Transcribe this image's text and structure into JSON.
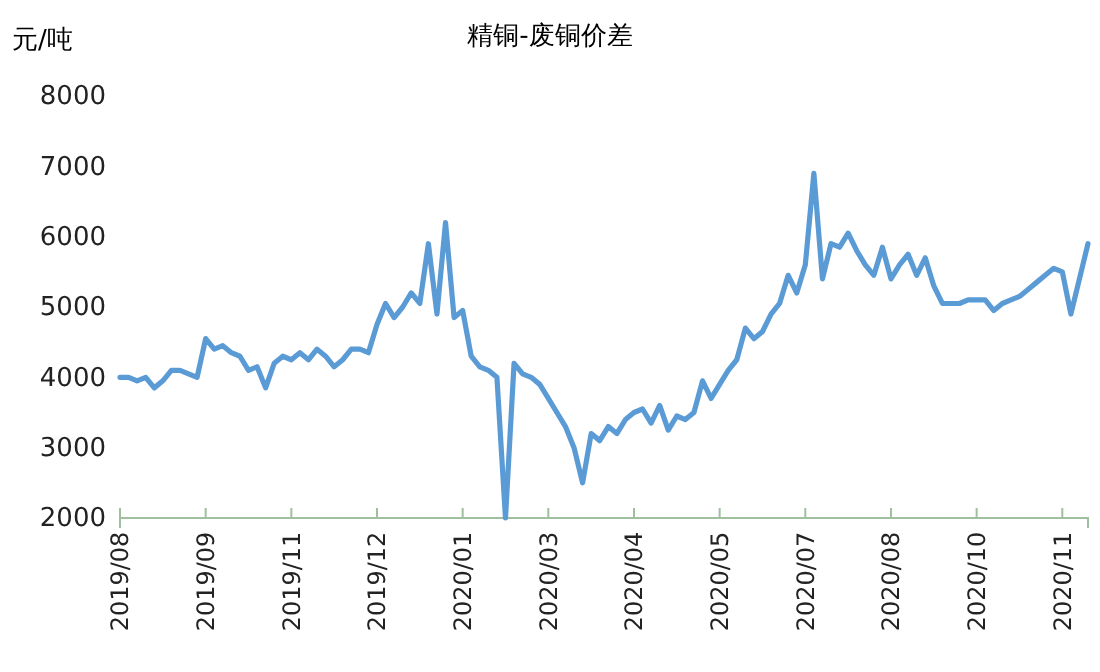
{
  "chart_data": {
    "type": "line",
    "title": "精铜-废铜价差",
    "ylabel": "元/吨",
    "categories": [
      "2019/08",
      null,
      null,
      null,
      null,
      null,
      null,
      null,
      null,
      null,
      "2019/09",
      null,
      null,
      null,
      null,
      null,
      null,
      null,
      null,
      null,
      "2019/11",
      null,
      null,
      null,
      null,
      null,
      null,
      null,
      null,
      null,
      "2019/12",
      null,
      null,
      null,
      null,
      null,
      null,
      null,
      null,
      null,
      "2020/01",
      null,
      null,
      null,
      null,
      null,
      null,
      null,
      null,
      null,
      "2020/03",
      null,
      null,
      null,
      null,
      null,
      null,
      null,
      null,
      null,
      "2020/04",
      null,
      null,
      null,
      null,
      null,
      null,
      null,
      null,
      null,
      "2020/05",
      null,
      null,
      null,
      null,
      null,
      null,
      null,
      null,
      null,
      "2020/07",
      null,
      null,
      null,
      null,
      null,
      null,
      null,
      null,
      null,
      "2020/08",
      null,
      null,
      null,
      null,
      null,
      null,
      null,
      null,
      null,
      "2020/10",
      null,
      null,
      null,
      null,
      null,
      null,
      null,
      null,
      null,
      "2020/11",
      null,
      null,
      null
    ],
    "series": [
      {
        "color": "#5b9bd5",
        "values": [
          4000,
          4000,
          3950,
          4000,
          3850,
          3950,
          4100,
          4100,
          4050,
          4000,
          4550,
          4400,
          4450,
          4350,
          4300,
          4100,
          4150,
          3850,
          4200,
          4300,
          4250,
          4350,
          4250,
          4400,
          4300,
          4150,
          4250,
          4400,
          4400,
          4350,
          4750,
          5050,
          4850,
          5000,
          5200,
          5050,
          5900,
          4900,
          6200,
          4850,
          4950,
          4300,
          4150,
          4100,
          4000,
          2000,
          4200,
          4050,
          4000,
          3900,
          3700,
          3500,
          3300,
          3000,
          2500,
          3200,
          3100,
          3300,
          3200,
          3400,
          3500,
          3550,
          3350,
          3600,
          3250,
          3450,
          3400,
          3500,
          3950,
          3700,
          3900,
          4100,
          4250,
          4700,
          4550,
          4650,
          4900,
          5050,
          5450,
          5200,
          5600,
          6900,
          5400,
          5900,
          5850,
          6050,
          5800,
          5600,
          5450,
          5850,
          5400,
          5600,
          5750,
          5450,
          5700,
          5300,
          5050,
          5050,
          5050,
          5100,
          5100,
          5100,
          4950,
          5050,
          5100,
          5150,
          5250,
          5350,
          5450,
          5550,
          5500,
          4900,
          5400,
          5900
        ]
      }
    ],
    "ylim": [
      2000,
      8000
    ],
    "yticks": [
      2000,
      3000,
      4000,
      5000,
      6000,
      7000,
      8000
    ],
    "grid": false,
    "line_style": "solid",
    "marker": "none"
  }
}
